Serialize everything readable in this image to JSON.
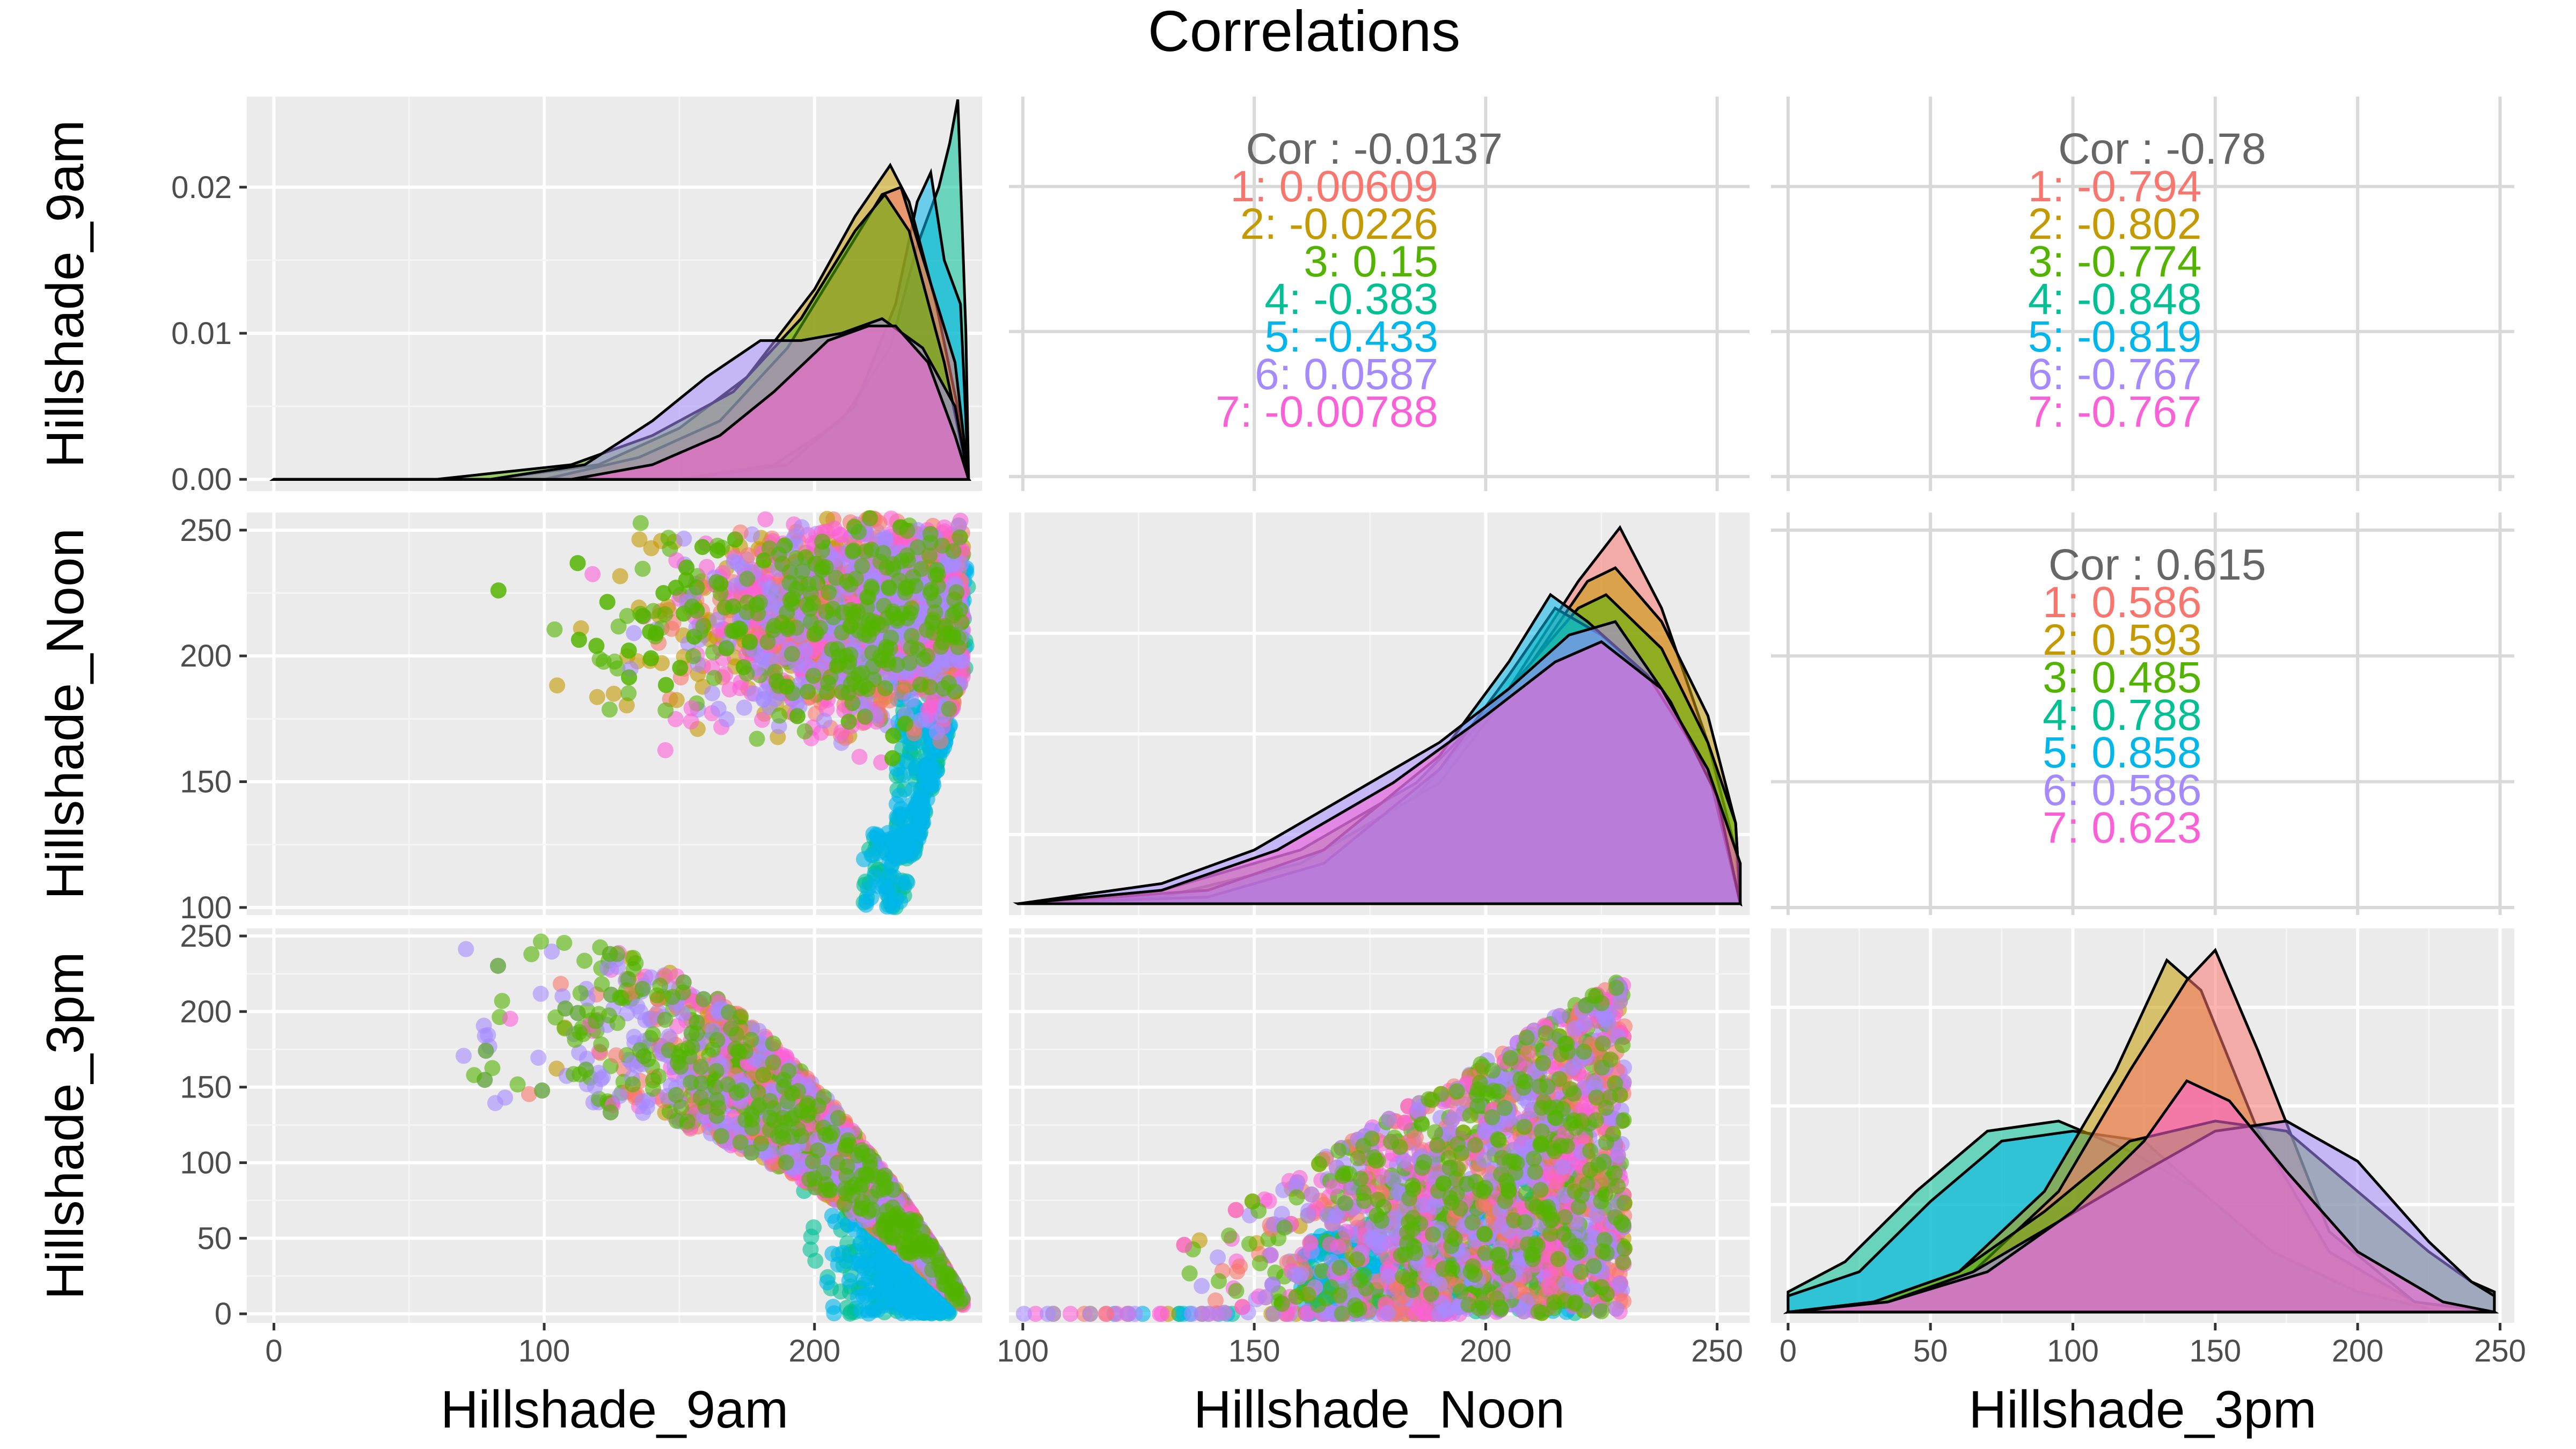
{
  "chart_data": {
    "type": "scatter",
    "title": "Correlations",
    "variables": [
      "Hillshade_9am",
      "Hillshade_Noon",
      "Hillshade_3pm"
    ],
    "colors": {
      "1": "#F8766D",
      "2": "#C49A00",
      "3": "#53B400",
      "4": "#00C094",
      "5": "#00B6EB",
      "6": "#A58AFF",
      "7": "#FB61D7"
    },
    "overall_label_color": "#666666",
    "panel_bg": "#EBEBEB",
    "axes": {
      "Hillshade_9am": {
        "lim": [
          -10,
          262
        ],
        "ticks": [
          0,
          100,
          200
        ],
        "tick_labels": [
          "0",
          "100",
          "200"
        ]
      },
      "Hillshade_Noon": {
        "lim": [
          97,
          257
        ],
        "ticks": [
          100,
          150,
          200,
          250
        ],
        "tick_labels": [
          "100",
          "150",
          "200",
          "250"
        ]
      },
      "Hillshade_3pm": {
        "lim": [
          -6,
          255
        ],
        "ticks": [
          0,
          50,
          100,
          150,
          200,
          250
        ],
        "tick_labels": [
          "0",
          "50",
          "100",
          "150",
          "200",
          "250"
        ]
      },
      "density_9am": {
        "lim": [
          -0.0008,
          0.0262
        ],
        "ticks": [
          0,
          0.01,
          0.02
        ],
        "tick_labels": [
          "0.00",
          "0.01",
          "0.02"
        ]
      }
    },
    "correlations": [
      {
        "pair": [
          "Hillshade_9am",
          "Hillshade_Noon"
        ],
        "overall": "Cor : -0.0137",
        "groups": [
          "1: 0.00609",
          "2: -0.0226",
          "3: 0.15",
          "4: -0.383",
          "5: -0.433",
          "6: 0.0587",
          "7: -0.00788"
        ]
      },
      {
        "pair": [
          "Hillshade_9am",
          "Hillshade_3pm"
        ],
        "overall": "Cor : -0.78",
        "groups": [
          "1: -0.794",
          "2: -0.802",
          "3: -0.774",
          "4: -0.848",
          "5: -0.819",
          "6: -0.767",
          "7: -0.767"
        ]
      },
      {
        "pair": [
          "Hillshade_Noon",
          "Hillshade_3pm"
        ],
        "overall": "Cor : 0.615",
        "groups": [
          "1: 0.586",
          "2: 0.593",
          "3: 0.485",
          "4: 0.788",
          "5: 0.858",
          "6: 0.586",
          "7: 0.623"
        ]
      }
    ],
    "densities": {
      "Hillshade_9am": [
        {
          "group": "4",
          "points": [
            [
              0,
              0
            ],
            [
              150,
              0
            ],
            [
              185,
              0.001
            ],
            [
              210,
              0.004
            ],
            [
              228,
              0.009
            ],
            [
              238,
              0.016
            ],
            [
              246,
              0.02
            ],
            [
              250,
              0.023
            ],
            [
              253,
              0.026
            ],
            [
              256,
              0.01
            ],
            [
              257,
              0
            ]
          ]
        },
        {
          "group": "5",
          "points": [
            [
              0,
              0
            ],
            [
              150,
              0
            ],
            [
              190,
              0.001
            ],
            [
              215,
              0.005
            ],
            [
              230,
              0.012
            ],
            [
              238,
              0.019
            ],
            [
              243,
              0.021
            ],
            [
              248,
              0.015
            ],
            [
              254,
              0.012
            ],
            [
              257,
              0
            ]
          ]
        },
        {
          "group": "2",
          "points": [
            [
              0,
              0
            ],
            [
              80,
              0
            ],
            [
              120,
              0.001
            ],
            [
              150,
              0.0035
            ],
            [
              175,
              0.007
            ],
            [
              200,
              0.013
            ],
            [
              215,
              0.018
            ],
            [
              228,
              0.0215
            ],
            [
              235,
              0.019
            ],
            [
              245,
              0.012
            ],
            [
              254,
              0.004
            ],
            [
              257,
              0
            ]
          ]
        },
        {
          "group": "1",
          "points": [
            [
              0,
              0
            ],
            [
              100,
              0
            ],
            [
              135,
              0.0015
            ],
            [
              165,
              0.004
            ],
            [
              190,
              0.009
            ],
            [
              210,
              0.015
            ],
            [
              225,
              0.0195
            ],
            [
              232,
              0.02
            ],
            [
              242,
              0.014
            ],
            [
              252,
              0.008
            ],
            [
              257,
              0
            ]
          ]
        },
        {
          "group": "3",
          "points": [
            [
              0,
              0
            ],
            [
              60,
              0
            ],
            [
              110,
              0.001
            ],
            [
              140,
              0.003
            ],
            [
              170,
              0.006
            ],
            [
              195,
              0.011
            ],
            [
              215,
              0.017
            ],
            [
              226,
              0.0195
            ],
            [
              235,
              0.017
            ],
            [
              248,
              0.008
            ],
            [
              257,
              0
            ]
          ]
        },
        {
          "group": "6",
          "points": [
            [
              0,
              0
            ],
            [
              80,
              0
            ],
            [
              115,
              0.001
            ],
            [
              140,
              0.004
            ],
            [
              160,
              0.007
            ],
            [
              180,
              0.0095
            ],
            [
              195,
              0.0095
            ],
            [
              210,
              0.01
            ],
            [
              225,
              0.011
            ],
            [
              240,
              0.009
            ],
            [
              252,
              0.005
            ],
            [
              257,
              0
            ]
          ]
        },
        {
          "group": "7",
          "points": [
            [
              0,
              0
            ],
            [
              110,
              0
            ],
            [
              140,
              0.001
            ],
            [
              165,
              0.003
            ],
            [
              185,
              0.006
            ],
            [
              205,
              0.0095
            ],
            [
              220,
              0.0105
            ],
            [
              230,
              0.0105
            ],
            [
              242,
              0.008
            ],
            [
              252,
              0.003
            ],
            [
              257,
              0
            ]
          ]
        }
      ],
      "Hillshade_Noon": [
        {
          "group": "1",
          "points": [
            [
              99,
              0
            ],
            [
              130,
              0.0005
            ],
            [
              160,
              0.003
            ],
            [
              185,
              0.008
            ],
            [
              205,
              0.016
            ],
            [
              220,
              0.024
            ],
            [
              229,
              0.028
            ],
            [
              238,
              0.022
            ],
            [
              248,
              0.012
            ],
            [
              254,
              0.004
            ],
            [
              255,
              0
            ]
          ]
        },
        {
          "group": "2",
          "points": [
            [
              99,
              0
            ],
            [
              130,
              0.0005
            ],
            [
              160,
              0.003
            ],
            [
              190,
              0.009
            ],
            [
              210,
              0.018
            ],
            [
              222,
              0.024
            ],
            [
              228,
              0.025
            ],
            [
              238,
              0.021
            ],
            [
              248,
              0.014
            ],
            [
              254,
              0.006
            ],
            [
              255,
              0
            ]
          ]
        },
        {
          "group": "3",
          "points": [
            [
              99,
              0
            ],
            [
              130,
              0.001
            ],
            [
              160,
              0.004
            ],
            [
              185,
              0.009
            ],
            [
              205,
              0.016
            ],
            [
              220,
              0.022
            ],
            [
              226,
              0.023
            ],
            [
              238,
              0.019
            ],
            [
              248,
              0.012
            ],
            [
              254,
              0.006
            ],
            [
              255,
              0
            ]
          ]
        },
        {
          "group": "4",
          "points": [
            [
              99,
              0
            ],
            [
              140,
              0.0005
            ],
            [
              165,
              0.003
            ],
            [
              190,
              0.01
            ],
            [
              205,
              0.017
            ],
            [
              215,
              0.022
            ],
            [
              225,
              0.02
            ],
            [
              238,
              0.016
            ],
            [
              248,
              0.01
            ],
            [
              255,
              0
            ]
          ]
        },
        {
          "group": "5",
          "points": [
            [
              99,
              0
            ],
            [
              140,
              0.001
            ],
            [
              165,
              0.004
            ],
            [
              190,
              0.011
            ],
            [
              205,
              0.018
            ],
            [
              214,
              0.023
            ],
            [
              222,
              0.021
            ],
            [
              235,
              0.017
            ],
            [
              248,
              0.01
            ],
            [
              255,
              0
            ]
          ]
        },
        {
          "group": "6",
          "points": [
            [
              99,
              0
            ],
            [
              130,
              0.0015
            ],
            [
              150,
              0.004
            ],
            [
              170,
              0.008
            ],
            [
              190,
              0.012
            ],
            [
              205,
              0.016
            ],
            [
              218,
              0.02
            ],
            [
              228,
              0.021
            ],
            [
              240,
              0.015
            ],
            [
              250,
              0.008
            ],
            [
              255,
              0
            ]
          ]
        },
        {
          "group": "7",
          "points": [
            [
              99,
              0
            ],
            [
              130,
              0.001
            ],
            [
              155,
              0.004
            ],
            [
              180,
              0.009
            ],
            [
              200,
              0.014
            ],
            [
              215,
              0.018
            ],
            [
              225,
              0.0195
            ],
            [
              238,
              0.016
            ],
            [
              248,
              0.01
            ],
            [
              255,
              0.003
            ]
          ]
        }
      ],
      "Hillshade_3pm": [
        {
          "group": "4",
          "points": [
            [
              0,
              0.001
            ],
            [
              20,
              0.0025
            ],
            [
              45,
              0.006
            ],
            [
              70,
              0.009
            ],
            [
              95,
              0.0095
            ],
            [
              120,
              0.008
            ],
            [
              145,
              0.006
            ],
            [
              170,
              0.003
            ],
            [
              200,
              0.001
            ],
            [
              230,
              0
            ],
            [
              248,
              0
            ]
          ]
        },
        {
          "group": "5",
          "points": [
            [
              0,
              0.0008
            ],
            [
              25,
              0.002
            ],
            [
              50,
              0.0055
            ],
            [
              75,
              0.0085
            ],
            [
              100,
              0.009
            ],
            [
              125,
              0.0085
            ],
            [
              145,
              0.006
            ],
            [
              170,
              0.003
            ],
            [
              200,
              0.001
            ],
            [
              230,
              0
            ],
            [
              248,
              0
            ]
          ]
        },
        {
          "group": "2",
          "points": [
            [
              0,
              0
            ],
            [
              30,
              0.0005
            ],
            [
              60,
              0.002
            ],
            [
              90,
              0.006
            ],
            [
              115,
              0.012
            ],
            [
              133,
              0.0175
            ],
            [
              145,
              0.016
            ],
            [
              165,
              0.009
            ],
            [
              190,
              0.003
            ],
            [
              220,
              0.0005
            ],
            [
              248,
              0
            ]
          ]
        },
        {
          "group": "1",
          "points": [
            [
              0,
              0
            ],
            [
              35,
              0.0005
            ],
            [
              65,
              0.002
            ],
            [
              95,
              0.006
            ],
            [
              120,
              0.012
            ],
            [
              140,
              0.0165
            ],
            [
              150,
              0.018
            ],
            [
              165,
              0.013
            ],
            [
              190,
              0.004
            ],
            [
              220,
              0.0005
            ],
            [
              248,
              0
            ]
          ]
        },
        {
          "group": "3",
          "points": [
            [
              0,
              0
            ],
            [
              30,
              0.0005
            ],
            [
              60,
              0.002
            ],
            [
              90,
              0.005
            ],
            [
              120,
              0.0085
            ],
            [
              150,
              0.0095
            ],
            [
              175,
              0.009
            ],
            [
              200,
              0.006
            ],
            [
              225,
              0.003
            ],
            [
              240,
              0.0015
            ],
            [
              248,
              0.001
            ]
          ]
        },
        {
          "group": "6",
          "points": [
            [
              0,
              0
            ],
            [
              35,
              0.0005
            ],
            [
              65,
              0.002
            ],
            [
              95,
              0.0045
            ],
            [
              125,
              0.007
            ],
            [
              150,
              0.009
            ],
            [
              175,
              0.0095
            ],
            [
              200,
              0.0075
            ],
            [
              225,
              0.0035
            ],
            [
              240,
              0.0015
            ],
            [
              248,
              0.0008
            ]
          ]
        },
        {
          "group": "7",
          "points": [
            [
              0,
              0
            ],
            [
              35,
              0.0005
            ],
            [
              70,
              0.002
            ],
            [
              100,
              0.005
            ],
            [
              125,
              0.0085
            ],
            [
              140,
              0.0115
            ],
            [
              155,
              0.0105
            ],
            [
              175,
              0.007
            ],
            [
              200,
              0.003
            ],
            [
              230,
              0.0005
            ],
            [
              248,
              0
            ]
          ]
        }
      ]
    }
  }
}
